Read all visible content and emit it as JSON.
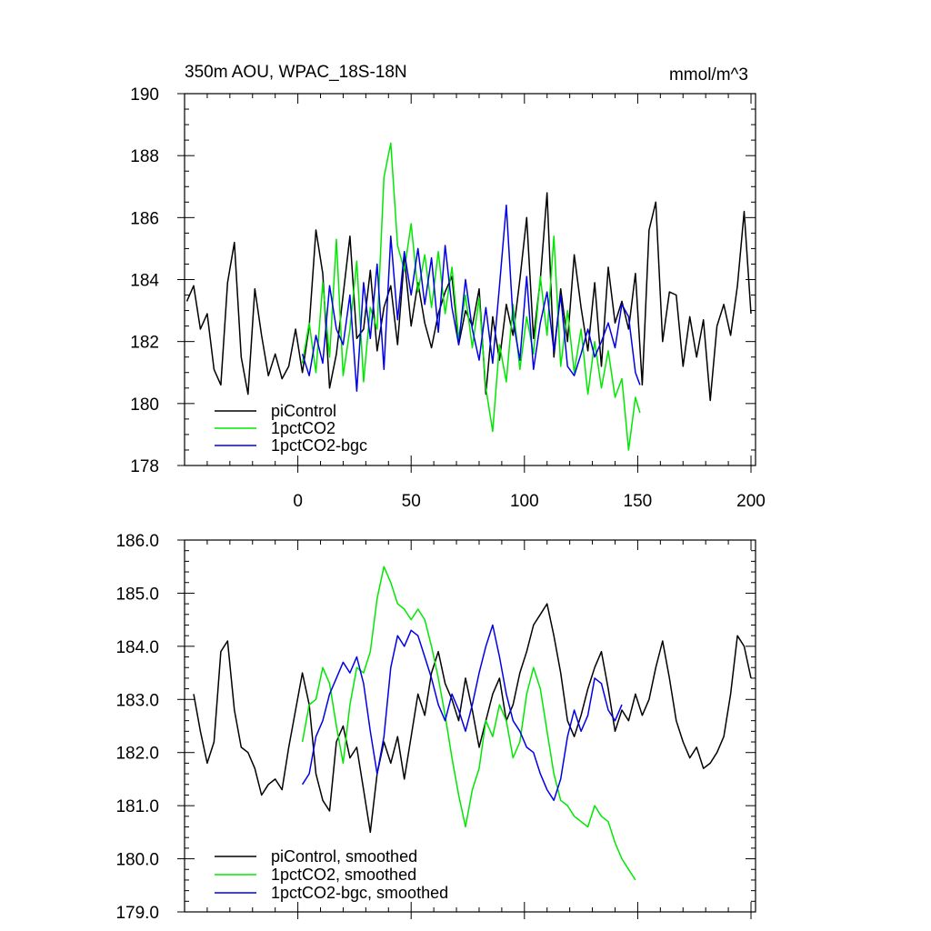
{
  "chart_data": [
    {
      "type": "line",
      "title": "350m AOU, WPAC_18S-18N",
      "units": "mmol/m^3",
      "xlabel": "",
      "ylabel": "",
      "xlim": [
        -50,
        202
      ],
      "ylim": [
        178,
        190
      ],
      "xticks": [
        0,
        50,
        100,
        150,
        200
      ],
      "xtick_labels": [
        "0",
        "50",
        "100",
        "150",
        "200"
      ],
      "yticks": [
        178,
        180,
        182,
        184,
        186,
        188,
        190
      ],
      "ytick_labels": [
        "178",
        "180",
        "182",
        "184",
        "186",
        "188",
        "190"
      ],
      "legend_position": "bottom-left",
      "series": [
        {
          "name": "piControl",
          "color": "#000000",
          "x": [
            -49,
            -46,
            -43,
            -40,
            -37,
            -34,
            -31,
            -28,
            -25,
            -22,
            -19,
            -16,
            -13,
            -10,
            -7,
            -4,
            -1,
            2,
            5,
            8,
            11,
            14,
            17,
            20,
            23,
            26,
            29,
            32,
            35,
            38,
            41,
            44,
            47,
            50,
            53,
            56,
            59,
            62,
            65,
            68,
            71,
            74,
            77,
            80,
            83,
            86,
            89,
            92,
            95,
            98,
            101,
            104,
            107,
            110,
            113,
            116,
            119,
            122,
            125,
            128,
            131,
            134,
            137,
            140,
            143,
            146,
            149,
            152,
            155,
            158,
            161,
            164,
            167,
            170,
            173,
            176,
            179,
            182,
            185,
            188,
            191,
            194,
            197,
            200
          ],
          "values": [
            183.3,
            183.8,
            182.4,
            182.9,
            181.1,
            180.6,
            183.9,
            185.2,
            181.5,
            180.3,
            183.7,
            182.2,
            180.9,
            181.6,
            180.8,
            181.2,
            182.4,
            181.0,
            182.5,
            185.6,
            184.2,
            180.5,
            181.6,
            183.5,
            185.4,
            182.1,
            182.4,
            184.3,
            181.7,
            183.1,
            183.8,
            181.9,
            184.7,
            182.5,
            183.9,
            182.6,
            181.8,
            182.9,
            183.6,
            184.1,
            181.9,
            183.0,
            182.5,
            183.7,
            180.3,
            182.8,
            181.4,
            183.2,
            182.2,
            184.0,
            186.0,
            182.1,
            184.0,
            186.8,
            181.5,
            183.7,
            182.0,
            184.8,
            183.1,
            181.7,
            183.9,
            181.2,
            184.4,
            182.6,
            183.3,
            182.4,
            184.2,
            180.6,
            185.6,
            186.5,
            182.0,
            183.6,
            183.5,
            181.2,
            182.8,
            181.5,
            182.7,
            180.1,
            182.5,
            183.2,
            182.2,
            183.8,
            186.2,
            182.9
          ]
        },
        {
          "name": "1pctCO2",
          "color": "#00e800",
          "x": [
            2,
            5,
            8,
            11,
            14,
            17,
            20,
            23,
            26,
            29,
            32,
            35,
            38,
            41,
            44,
            47,
            50,
            53,
            56,
            59,
            62,
            65,
            68,
            71,
            74,
            77,
            80,
            83,
            86,
            89,
            92,
            95,
            98,
            101,
            104,
            107,
            110,
            113,
            116,
            119,
            122,
            125,
            128,
            131,
            134,
            137,
            140,
            143,
            146,
            149,
            151
          ],
          "values": [
            181.3,
            182.6,
            181.0,
            183.9,
            181.5,
            185.3,
            180.9,
            182.4,
            184.6,
            180.7,
            183.1,
            182.4,
            187.3,
            188.4,
            185.1,
            184.3,
            185.8,
            183.6,
            184.8,
            183.1,
            184.9,
            182.9,
            184.4,
            182.1,
            183.5,
            181.8,
            183.4,
            180.5,
            179.1,
            181.9,
            180.7,
            183.2,
            181.1,
            182.8,
            181.6,
            184.1,
            182.2,
            185.4,
            181.2,
            183.0,
            181.0,
            182.4,
            180.3,
            182.0,
            180.5,
            181.7,
            180.2,
            180.8,
            178.5,
            180.2,
            179.7
          ]
        },
        {
          "name": "1pctCO2-bgc",
          "color": "#0000e8",
          "x": [
            2,
            5,
            8,
            11,
            14,
            17,
            20,
            23,
            26,
            29,
            32,
            35,
            38,
            41,
            44,
            47,
            50,
            53,
            56,
            59,
            62,
            65,
            68,
            71,
            74,
            77,
            80,
            83,
            86,
            89,
            92,
            95,
            98,
            101,
            104,
            107,
            110,
            113,
            116,
            119,
            122,
            125,
            128,
            131,
            134,
            137,
            140,
            143,
            146,
            149,
            151
          ],
          "values": [
            181.6,
            180.9,
            182.2,
            181.3,
            183.8,
            182.4,
            181.9,
            183.5,
            180.4,
            183.9,
            182.1,
            184.5,
            181.1,
            185.4,
            182.7,
            184.9,
            183.5,
            185.0,
            183.2,
            184.7,
            182.3,
            185.1,
            183.1,
            181.9,
            184.0,
            182.4,
            181.4,
            183.1,
            181.3,
            183.8,
            186.4,
            182.7,
            181.4,
            184.1,
            181.1,
            182.6,
            183.6,
            181.7,
            183.5,
            181.2,
            180.9,
            181.6,
            182.4,
            181.5,
            182.0,
            182.6,
            181.8,
            183.2,
            182.8,
            181.0,
            180.6
          ]
        }
      ]
    },
    {
      "type": "line",
      "title": "",
      "xlabel": "",
      "ylabel": "",
      "xlim": [
        -50,
        202
      ],
      "ylim": [
        179.0,
        186.0
      ],
      "xticks": [
        0,
        50,
        100,
        150,
        200
      ],
      "xtick_labels": [],
      "yticks": [
        179.0,
        180.0,
        181.0,
        182.0,
        183.0,
        184.0,
        185.0,
        186.0
      ],
      "ytick_labels": [
        "179.0",
        "180.0",
        "181.0",
        "182.0",
        "183.0",
        "184.0",
        "185.0",
        "186.0"
      ],
      "legend_position": "bottom-left",
      "series": [
        {
          "name": "piControl, smoothed",
          "color": "#000000",
          "x": [
            -46,
            -43,
            -40,
            -37,
            -34,
            -31,
            -28,
            -25,
            -22,
            -19,
            -16,
            -13,
            -10,
            -7,
            -4,
            -1,
            2,
            5,
            8,
            11,
            14,
            17,
            20,
            23,
            26,
            29,
            32,
            35,
            38,
            41,
            44,
            47,
            50,
            53,
            56,
            59,
            62,
            65,
            68,
            71,
            74,
            77,
            80,
            83,
            86,
            89,
            92,
            95,
            98,
            101,
            104,
            107,
            110,
            113,
            116,
            119,
            122,
            125,
            128,
            131,
            134,
            137,
            140,
            143,
            146,
            149,
            152,
            155,
            158,
            161,
            164,
            167,
            170,
            173,
            176,
            179,
            182,
            185,
            188,
            191,
            194,
            197,
            200
          ],
          "values": [
            183.1,
            182.4,
            181.8,
            182.2,
            183.9,
            184.1,
            182.8,
            182.1,
            182.0,
            181.7,
            181.2,
            181.4,
            181.5,
            181.3,
            182.1,
            182.8,
            183.5,
            182.9,
            181.6,
            181.1,
            180.9,
            182.2,
            182.5,
            181.9,
            182.1,
            181.3,
            180.5,
            181.6,
            182.2,
            181.8,
            182.3,
            181.5,
            182.3,
            183.1,
            182.7,
            183.5,
            183.9,
            183.3,
            183.0,
            182.6,
            183.4,
            182.8,
            182.1,
            182.6,
            183.1,
            183.4,
            182.6,
            182.9,
            183.5,
            183.9,
            184.4,
            184.6,
            184.8,
            184.2,
            183.5,
            182.6,
            182.3,
            182.7,
            183.2,
            183.6,
            183.9,
            183.2,
            182.4,
            182.8,
            182.6,
            183.1,
            182.7,
            183.0,
            183.6,
            184.1,
            183.4,
            182.6,
            182.2,
            181.9,
            182.1,
            181.7,
            181.8,
            182.0,
            182.3,
            183.1,
            184.2,
            184.0,
            183.4
          ]
        },
        {
          "name": "1pctCO2, smoothed",
          "color": "#00e800",
          "x": [
            2,
            5,
            8,
            11,
            14,
            17,
            20,
            23,
            26,
            29,
            32,
            35,
            38,
            41,
            44,
            47,
            50,
            53,
            56,
            59,
            62,
            65,
            68,
            71,
            74,
            77,
            80,
            83,
            86,
            89,
            92,
            95,
            98,
            101,
            104,
            107,
            110,
            113,
            116,
            119,
            122,
            125,
            128,
            131,
            134,
            137,
            140,
            143,
            146,
            149
          ],
          "values": [
            182.2,
            182.9,
            183.0,
            183.6,
            183.3,
            182.5,
            181.8,
            182.9,
            183.6,
            183.5,
            183.9,
            184.9,
            185.5,
            185.2,
            184.8,
            184.7,
            184.5,
            184.7,
            184.5,
            184.0,
            183.4,
            182.7,
            181.9,
            181.2,
            180.6,
            181.3,
            181.7,
            182.6,
            182.3,
            182.9,
            182.6,
            181.9,
            182.2,
            183.1,
            183.6,
            183.2,
            182.4,
            181.6,
            181.1,
            181.0,
            180.8,
            180.7,
            180.6,
            181.0,
            180.8,
            180.7,
            180.3,
            180.0,
            179.8,
            179.6
          ]
        },
        {
          "name": "1pctCO2-bgc, smoothed",
          "color": "#0000e8",
          "x": [
            2,
            5,
            8,
            11,
            14,
            17,
            20,
            23,
            26,
            29,
            32,
            35,
            38,
            41,
            44,
            47,
            50,
            53,
            56,
            59,
            62,
            65,
            68,
            71,
            74,
            77,
            80,
            83,
            86,
            89,
            92,
            95,
            98,
            101,
            104,
            107,
            110,
            113,
            116,
            119,
            122,
            125,
            128,
            131,
            134,
            137,
            140,
            143
          ],
          "values": [
            181.4,
            181.6,
            182.3,
            182.6,
            183.1,
            183.4,
            183.7,
            183.5,
            183.8,
            183.3,
            182.4,
            181.6,
            182.3,
            183.6,
            184.2,
            184.0,
            184.3,
            184.2,
            183.8,
            183.4,
            182.9,
            182.6,
            183.1,
            182.8,
            182.4,
            182.9,
            183.5,
            184.0,
            184.4,
            183.8,
            183.1,
            182.6,
            182.4,
            182.1,
            182.0,
            181.6,
            181.3,
            181.1,
            181.5,
            182.3,
            182.8,
            182.4,
            182.7,
            183.4,
            183.3,
            182.8,
            182.6,
            182.9
          ]
        }
      ]
    }
  ]
}
